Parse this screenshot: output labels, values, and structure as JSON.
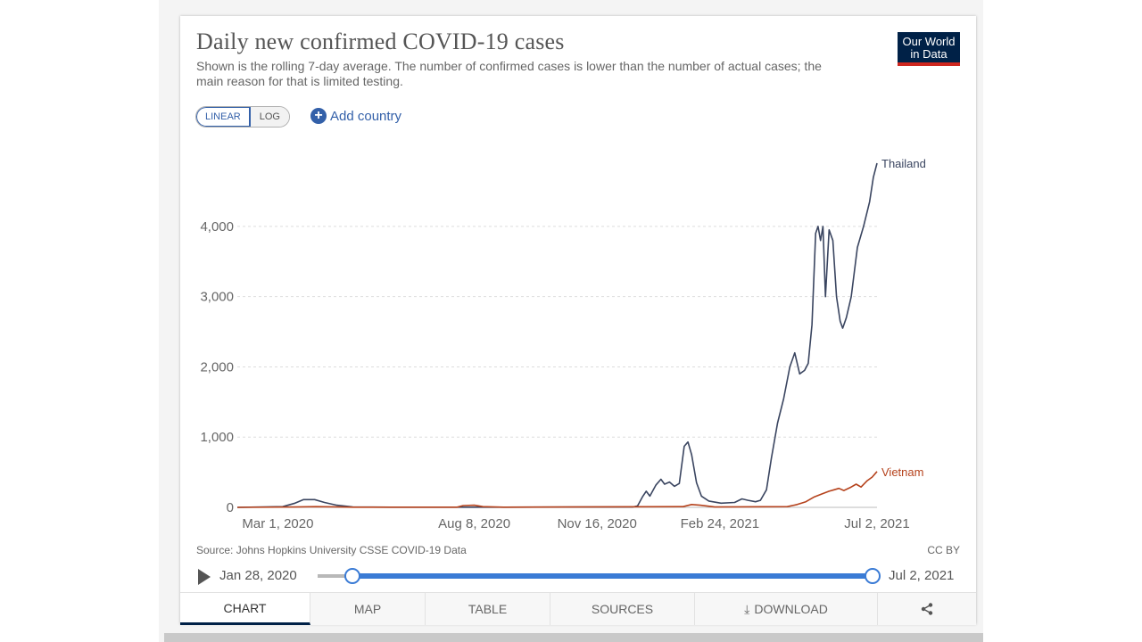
{
  "header": {
    "title": "Daily new confirmed COVID-19 cases",
    "subtitle": "Shown is the rolling 7-day average. The number of confirmed cases is lower than the number of actual cases; the main reason for that is limited testing.",
    "logo_text": "Our World in Data"
  },
  "controls": {
    "linear_label": "LINEAR",
    "log_label": "LOG",
    "add_country_label": "Add country"
  },
  "colors": {
    "thailand": "#3a4560",
    "vietnam": "#b5421c",
    "accent": "#3360a9",
    "logo_bg": "#002147",
    "logo_stripe": "#ce261e"
  },
  "chart_data": {
    "type": "line",
    "x_ticks": [
      "Mar 1, 2020",
      "Aug 8, 2020",
      "Nov 16, 2020",
      "Feb 24, 2021",
      "Jul 2, 2021"
    ],
    "x_start": "2020-01-28",
    "x_end": "2021-07-02",
    "y_ticks": [
      "0",
      "1,000",
      "2,000",
      "3,000",
      "4,000"
    ],
    "ylim": [
      0,
      4900
    ],
    "grid": true,
    "series": [
      {
        "name": "Thailand",
        "color": "#3a4560",
        "points": [
          [
            "2020-01-28",
            0
          ],
          [
            "2020-03-05",
            10
          ],
          [
            "2020-03-15",
            60
          ],
          [
            "2020-03-22",
            110
          ],
          [
            "2020-03-31",
            110
          ],
          [
            "2020-04-08",
            70
          ],
          [
            "2020-04-18",
            30
          ],
          [
            "2020-05-01",
            5
          ],
          [
            "2020-06-01",
            2
          ],
          [
            "2020-09-01",
            3
          ],
          [
            "2020-12-15",
            5
          ],
          [
            "2020-12-19",
            20
          ],
          [
            "2020-12-23",
            150
          ],
          [
            "2020-12-26",
            230
          ],
          [
            "2020-12-29",
            160
          ],
          [
            "2021-01-03",
            320
          ],
          [
            "2021-01-07",
            400
          ],
          [
            "2021-01-10",
            330
          ],
          [
            "2021-01-14",
            360
          ],
          [
            "2021-01-18",
            300
          ],
          [
            "2021-01-22",
            340
          ],
          [
            "2021-01-26",
            870
          ],
          [
            "2021-01-29",
            930
          ],
          [
            "2021-02-01",
            750
          ],
          [
            "2021-02-05",
            350
          ],
          [
            "2021-02-09",
            160
          ],
          [
            "2021-02-15",
            90
          ],
          [
            "2021-02-25",
            60
          ],
          [
            "2021-03-08",
            70
          ],
          [
            "2021-03-14",
            120
          ],
          [
            "2021-03-19",
            100
          ],
          [
            "2021-03-25",
            80
          ],
          [
            "2021-03-29",
            100
          ],
          [
            "2021-04-03",
            250
          ],
          [
            "2021-04-07",
            700
          ],
          [
            "2021-04-12",
            1200
          ],
          [
            "2021-04-17",
            1550
          ],
          [
            "2021-04-22",
            2000
          ],
          [
            "2021-04-26",
            2200
          ],
          [
            "2021-04-30",
            1900
          ],
          [
            "2021-05-04",
            1950
          ],
          [
            "2021-05-07",
            2050
          ],
          [
            "2021-05-10",
            2600
          ],
          [
            "2021-05-13",
            3900
          ],
          [
            "2021-05-15",
            4000
          ],
          [
            "2021-05-17",
            3800
          ],
          [
            "2021-05-19",
            4000
          ],
          [
            "2021-05-21",
            3000
          ],
          [
            "2021-05-24",
            3950
          ],
          [
            "2021-05-27",
            3800
          ],
          [
            "2021-05-30",
            3000
          ],
          [
            "2021-06-02",
            2650
          ],
          [
            "2021-06-04",
            2550
          ],
          [
            "2021-06-07",
            2700
          ],
          [
            "2021-06-11",
            3000
          ],
          [
            "2021-06-16",
            3700
          ],
          [
            "2021-06-21",
            4000
          ],
          [
            "2021-06-26",
            4350
          ],
          [
            "2021-06-29",
            4700
          ],
          [
            "2021-07-02",
            4900
          ]
        ]
      },
      {
        "name": "Vietnam",
        "color": "#b5421c",
        "points": [
          [
            "2020-01-28",
            0
          ],
          [
            "2020-03-15",
            5
          ],
          [
            "2020-04-01",
            10
          ],
          [
            "2020-05-01",
            2
          ],
          [
            "2020-07-25",
            3
          ],
          [
            "2020-07-30",
            25
          ],
          [
            "2020-08-08",
            30
          ],
          [
            "2020-08-15",
            10
          ],
          [
            "2020-09-01",
            2
          ],
          [
            "2021-01-25",
            10
          ],
          [
            "2021-02-01",
            40
          ],
          [
            "2021-02-08",
            30
          ],
          [
            "2021-02-20",
            5
          ],
          [
            "2021-04-20",
            10
          ],
          [
            "2021-04-28",
            40
          ],
          [
            "2021-05-05",
            80
          ],
          [
            "2021-05-12",
            150
          ],
          [
            "2021-05-18",
            190
          ],
          [
            "2021-05-24",
            230
          ],
          [
            "2021-05-28",
            250
          ],
          [
            "2021-06-01",
            270
          ],
          [
            "2021-06-05",
            240
          ],
          [
            "2021-06-10",
            280
          ],
          [
            "2021-06-15",
            330
          ],
          [
            "2021-06-19",
            290
          ],
          [
            "2021-06-24",
            380
          ],
          [
            "2021-06-28",
            430
          ],
          [
            "2021-07-02",
            510
          ]
        ]
      }
    ]
  },
  "footer": {
    "source": "Source: Johns Hopkins University CSSE COVID-19 Data",
    "license": "CC BY"
  },
  "timeline": {
    "start_label": "Jan 28, 2020",
    "end_label": "Jul 2, 2021"
  },
  "tabs": [
    {
      "label": "CHART",
      "active": true
    },
    {
      "label": "MAP",
      "active": false
    },
    {
      "label": "TABLE",
      "active": false
    },
    {
      "label": "SOURCES",
      "active": false
    },
    {
      "label": "DOWNLOAD",
      "active": false
    },
    {
      "label": "",
      "active": false
    }
  ]
}
